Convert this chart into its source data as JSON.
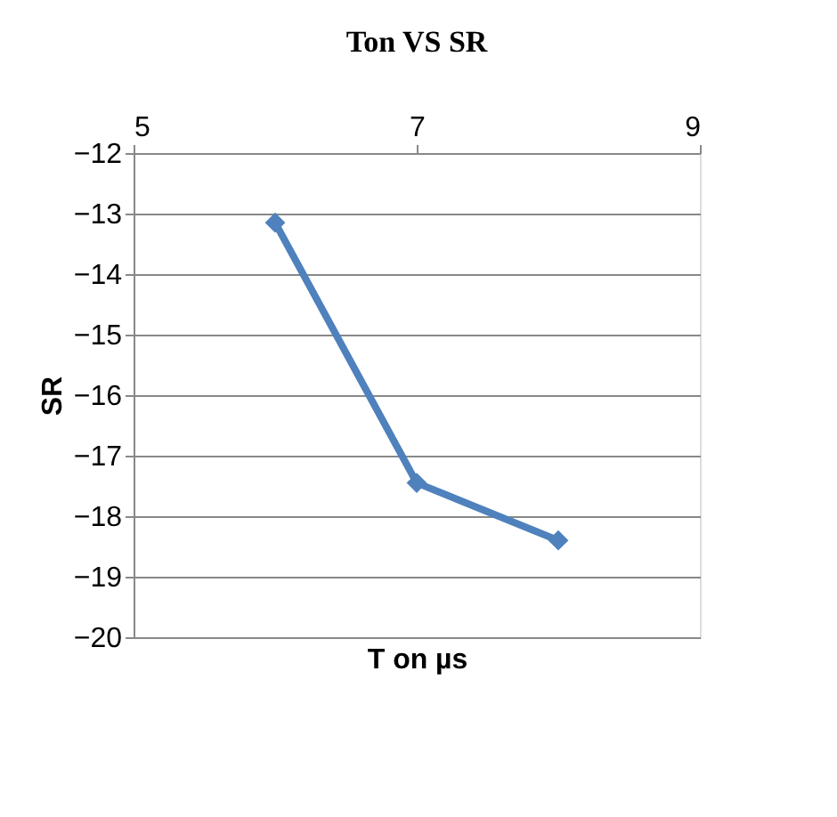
{
  "chart_data": {
    "type": "line",
    "title": "Ton  VS   SR",
    "xlabel": "T on µs",
    "ylabel": "SR",
    "x": [
      6,
      7,
      8
    ],
    "series": [
      {
        "color": "#4f81bd",
        "values": [
          -13.15,
          -17.45,
          -18.4
        ]
      }
    ],
    "xlim": [
      5,
      9
    ],
    "xticks": [
      5,
      7,
      9
    ],
    "ylim": [
      -20,
      -12
    ],
    "yticks": [
      -20,
      -19,
      -18,
      -17,
      -16,
      -15,
      -14,
      -13,
      -12
    ],
    "grid": "y",
    "marker": "diamond",
    "line_style": "solid"
  }
}
